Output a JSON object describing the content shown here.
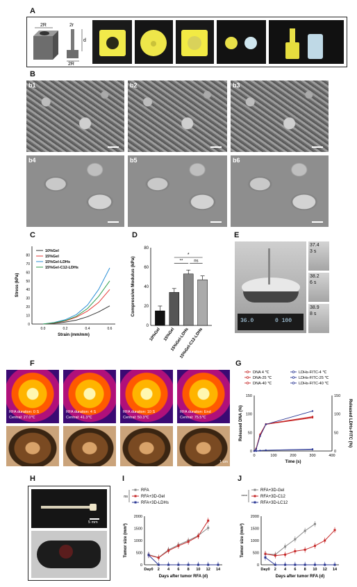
{
  "panels": {
    "A": "A",
    "B": "B",
    "C": "C",
    "D": "D",
    "E": "E",
    "F": "F",
    "G": "G",
    "H": "H",
    "I": "I",
    "J": "J"
  },
  "panelA": {
    "big_r": "2R",
    "small_r": "2r",
    "d": "d",
    "base": "2R"
  },
  "panelB": {
    "tiles": [
      "b1",
      "b2",
      "b3",
      "b4",
      "b5",
      "b6"
    ]
  },
  "panelE": {
    "readings": [
      {
        "temp": "37.4",
        "time": "3 s"
      },
      {
        "temp": "38.2",
        "time": "6 s"
      },
      {
        "temp": "38.9",
        "time": "8 s"
      }
    ],
    "display_left": "36.0",
    "display_right": "0 100"
  },
  "panelF": {
    "frames": [
      {
        "duration": "RFA duration: 0 S",
        "central": "Central: 27.0℃"
      },
      {
        "duration": "RFA duration: 4 S",
        "central": "Central: 41.3℃"
      },
      {
        "duration": "RFA duration: 10 S",
        "central": "Central: 50.3℃"
      },
      {
        "duration": "RFA duration:  End",
        "central": "Central: 75.5℃"
      }
    ],
    "scale": "1 cm"
  },
  "panelH": {
    "scale": "5 mm"
  },
  "chart_data": [
    {
      "panel": "C",
      "type": "line",
      "xlabel": "Strain (mm/mm)",
      "ylabel": "Stress (kPa)",
      "xlim": [
        -0.1,
        0.65
      ],
      "ylim": [
        0,
        90
      ],
      "xticks": [
        0.0,
        0.2,
        0.4,
        0.6
      ],
      "yticks": [
        0,
        10,
        20,
        30,
        40,
        50,
        60,
        70,
        80
      ],
      "series": [
        {
          "name": "10%Gel",
          "color": "#333333",
          "x": [
            0,
            0.1,
            0.2,
            0.3,
            0.4,
            0.5,
            0.6
          ],
          "y": [
            0,
            0.8,
            2.2,
            4.5,
            8.5,
            14,
            21
          ]
        },
        {
          "name": "15%Gel",
          "color": "#e53935",
          "x": [
            0,
            0.1,
            0.2,
            0.3,
            0.4,
            0.5,
            0.6
          ],
          "y": [
            0,
            1.2,
            3.5,
            8,
            15,
            25,
            40
          ]
        },
        {
          "name": "15%Gel-LDHs",
          "color": "#2b8fd6",
          "x": [
            0,
            0.1,
            0.2,
            0.3,
            0.4,
            0.5,
            0.6
          ],
          "y": [
            0,
            1.8,
            5,
            11,
            22,
            40,
            65
          ]
        },
        {
          "name": "15%Gel-C12-LDHs",
          "color": "#2e9d4e",
          "x": [
            0,
            0.1,
            0.2,
            0.3,
            0.4,
            0.5,
            0.6
          ],
          "y": [
            0,
            1.5,
            4,
            9,
            18,
            32,
            50
          ]
        }
      ],
      "legend": "top-left"
    },
    {
      "panel": "D",
      "type": "bar",
      "ylabel": "Compressive Modulus (kPa)",
      "ylim": [
        0,
        80
      ],
      "yticks": [
        0,
        20,
        40,
        60,
        80
      ],
      "categories": [
        "10%Gel",
        "15%Gel",
        "15%Gel-LDHs",
        "15%Gel-C12-LDHs"
      ],
      "values": [
        15,
        34,
        53,
        47
      ],
      "errors": [
        5,
        4,
        4,
        4
      ],
      "colors": [
        "#111111",
        "#555555",
        "#888888",
        "#aaaaaa"
      ],
      "annotations": [
        "*",
        "**",
        "ns"
      ]
    },
    {
      "panel": "G",
      "type": "line",
      "xlabel": "Time (s)",
      "ylabel": "Released DNA (%)",
      "ylabel_right": "Released LDHs-FITC (%)",
      "xlim": [
        0,
        400
      ],
      "ylim": [
        0,
        150
      ],
      "yticks": [
        0,
        50,
        100,
        150
      ],
      "xticks": [
        0,
        100,
        200,
        300,
        400
      ],
      "series": [
        {
          "name": "DNA 4 ℃",
          "color": "#c62828",
          "x": [
            0,
            10,
            30,
            60,
            300
          ],
          "y": [
            0,
            5,
            40,
            72,
            90
          ]
        },
        {
          "name": "DNA-25 ℃",
          "color": "#c62828",
          "x": [
            0,
            10,
            30,
            60,
            300
          ],
          "y": [
            0,
            6,
            42,
            72,
            92
          ]
        },
        {
          "name": "DNA-40 ℃",
          "color": "#c62828",
          "x": [
            0,
            10,
            30,
            60,
            300
          ],
          "y": [
            0,
            7,
            45,
            73,
            93
          ]
        },
        {
          "name": "LDHs-FITC-4 ℃",
          "color": "#283593",
          "x": [
            0,
            10,
            30,
            60,
            300
          ],
          "y": [
            0,
            0,
            1,
            2,
            4
          ]
        },
        {
          "name": "LDHs-FITC-25 ℃",
          "color": "#283593",
          "x": [
            0,
            10,
            30,
            60,
            300
          ],
          "y": [
            0,
            0,
            1,
            2,
            5
          ]
        },
        {
          "name": "LDHs-FITC-40 ℃",
          "color": "#283593",
          "x": [
            0,
            10,
            30,
            60,
            300
          ],
          "y": [
            0,
            5,
            40,
            72,
            108
          ]
        }
      ],
      "legend": "top"
    },
    {
      "panel": "I",
      "type": "line",
      "xlabel": "Days after tumor RFA (d)",
      "ylabel": "Tumor size (mm³)",
      "ylim": [
        0,
        2000
      ],
      "yticks": [
        0,
        500,
        1000,
        1500,
        2000
      ],
      "xtick_labels": [
        "Day0",
        "2",
        "4",
        "6",
        "8",
        "10",
        "12",
        "14"
      ],
      "series": [
        {
          "name": "RFA",
          "color": "#888888",
          "x": [
            0,
            2,
            4,
            6,
            8,
            10,
            12
          ],
          "y": [
            420,
            300,
            620,
            820,
            1000,
            1200,
            1520
          ]
        },
        {
          "name": "RFA+3D-Gel",
          "color": "#c62828",
          "x": [
            0,
            2,
            4,
            6,
            8,
            10,
            12
          ],
          "y": [
            400,
            290,
            580,
            780,
            950,
            1180,
            1820
          ]
        },
        {
          "name": "RFA+3D-LDHs",
          "color": "#283593",
          "x": [
            0,
            2,
            4,
            6,
            8,
            10,
            12,
            14
          ],
          "y": [
            400,
            0,
            0,
            0,
            0,
            0,
            0,
            0
          ]
        }
      ],
      "annotation": "ns"
    },
    {
      "panel": "J",
      "type": "line",
      "xlabel": "Days after tumor RFA (d)",
      "ylabel": "Tumor size (mm³)",
      "ylim": [
        0,
        2000
      ],
      "yticks": [
        0,
        500,
        1000,
        1500,
        2000
      ],
      "xtick_labels": [
        "Day0",
        "2",
        "4",
        "6",
        "8",
        "10",
        "12",
        "14"
      ],
      "series": [
        {
          "name": "RFA+3D-Gel",
          "color": "#888888",
          "x": [
            0,
            2,
            4,
            6,
            8,
            10
          ],
          "y": [
            450,
            420,
            750,
            1050,
            1400,
            1680
          ]
        },
        {
          "name": "RFA+3D-C12",
          "color": "#c62828",
          "x": [
            0,
            2,
            4,
            6,
            8,
            10,
            12,
            14
          ],
          "y": [
            450,
            380,
            420,
            560,
            620,
            780,
            1000,
            1430
          ]
        },
        {
          "name": "RFA+3D-LC12",
          "color": "#283593",
          "x": [
            0,
            2,
            4,
            6,
            8,
            10,
            12,
            14
          ],
          "y": [
            300,
            0,
            0,
            0,
            0,
            0,
            0,
            0
          ]
        }
      ],
      "annotation": "****"
    }
  ]
}
